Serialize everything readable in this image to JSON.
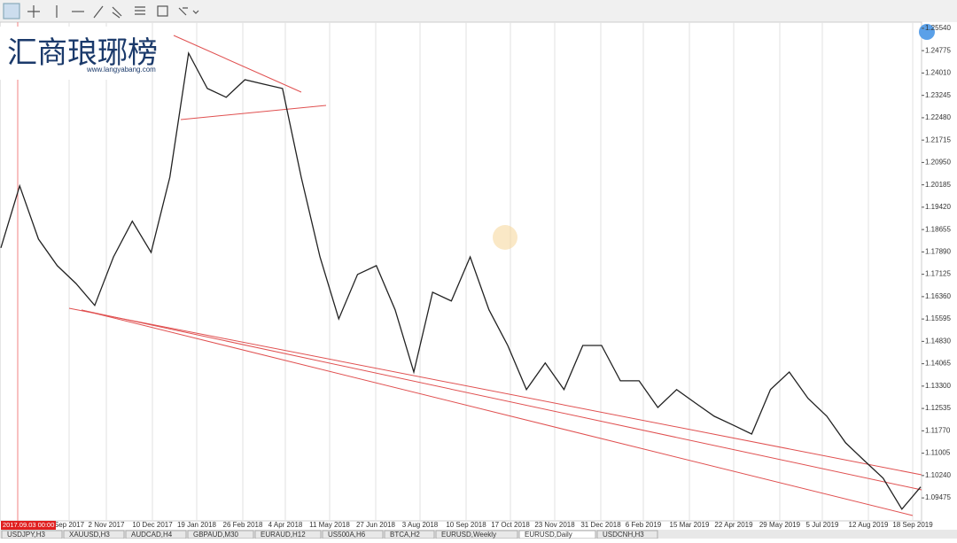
{
  "logo": {
    "title": "汇商琅琊榜",
    "url": "www.langyabang.com"
  },
  "chart_data": {
    "type": "line",
    "color": "#222222",
    "values": [
      1.1803,
      1.2015,
      1.1833,
      1.1742,
      1.1681,
      1.1606,
      1.1772,
      1.1894,
      1.1787,
      1.2045,
      1.2469,
      1.2348,
      1.2318,
      1.2378,
      1.2363,
      1.2348,
      1.2045,
      1.1772,
      1.156,
      1.1712,
      1.1742,
      1.1591,
      1.1378,
      1.1651,
      1.1621,
      1.1772,
      1.1591,
      1.1469,
      1.1318,
      1.1409,
      1.1318,
      1.1469,
      1.1469,
      1.1348,
      1.1348,
      1.1257,
      1.1318,
      1.1272,
      1.1227,
      1.1197,
      1.1166,
      1.1318,
      1.1378,
      1.1288,
      1.1227,
      1.1136,
      1.1075,
      1.1015,
      1.0909,
      1.0985
    ],
    "ylim": [
      1.0869,
      1.2575
    ],
    "yticks": [
      {
        "value": 1.2554,
        "label": "1.25540"
      },
      {
        "value": 1.24775,
        "label": "1.24775"
      },
      {
        "value": 1.2401,
        "label": "1.24010"
      },
      {
        "value": 1.23245,
        "label": "1.23245"
      },
      {
        "value": 1.2248,
        "label": "1.22480"
      },
      {
        "value": 1.21715,
        "label": "1.21715"
      },
      {
        "value": 1.2095,
        "label": "1.20950"
      },
      {
        "value": 1.20185,
        "label": "1.20185"
      },
      {
        "value": 1.1942,
        "label": "1.19420"
      },
      {
        "value": 1.18655,
        "label": "1.18655"
      },
      {
        "value": 1.1789,
        "label": "1.17890"
      },
      {
        "value": 1.17125,
        "label": "1.17125"
      },
      {
        "value": 1.1636,
        "label": "1.16360"
      },
      {
        "value": 1.15595,
        "label": "1.15595"
      },
      {
        "value": 1.1483,
        "label": "1.14830"
      },
      {
        "value": 1.14065,
        "label": "1.14065"
      },
      {
        "value": 1.133,
        "label": "1.13300"
      },
      {
        "value": 1.12535,
        "label": "1.12535"
      },
      {
        "value": 1.1177,
        "label": "1.11770"
      },
      {
        "value": 1.11005,
        "label": "1.11005"
      },
      {
        "value": 1.1024,
        "label": "1.10240"
      },
      {
        "value": 1.09475,
        "label": "1.09475"
      }
    ],
    "date_labels": [
      "Sep 2017",
      "2 Nov 2017",
      "10 Dec 2017",
      "19 Jan 2018",
      "26 Feb 2018",
      "4 Apr 2018",
      "11 May 2018",
      "27 Jun 2018",
      "3 Aug 2018",
      "10 Sep 2018",
      "17 Oct 2018",
      "23 Nov 2018",
      "31 Dec 2018",
      "6 Feb 2019",
      "15 Mar 2019",
      "22 Apr 2019",
      "29 May 2019",
      "5 Jul 2019",
      "12 Aug 2019",
      "18 Sep 2019"
    ],
    "cursor_time": "2017.09.03 00:00"
  },
  "tabs": [
    "USDJPY,H3",
    "XAUUSD,H3",
    "AUDCAD,H4",
    "GBPAUD,M30",
    "EURAUD,H12",
    "US500A,H6",
    "BTCA,H2",
    "EURUSD,Weekly",
    "EURUSD,Daily",
    "USDCNH,H3"
  ]
}
